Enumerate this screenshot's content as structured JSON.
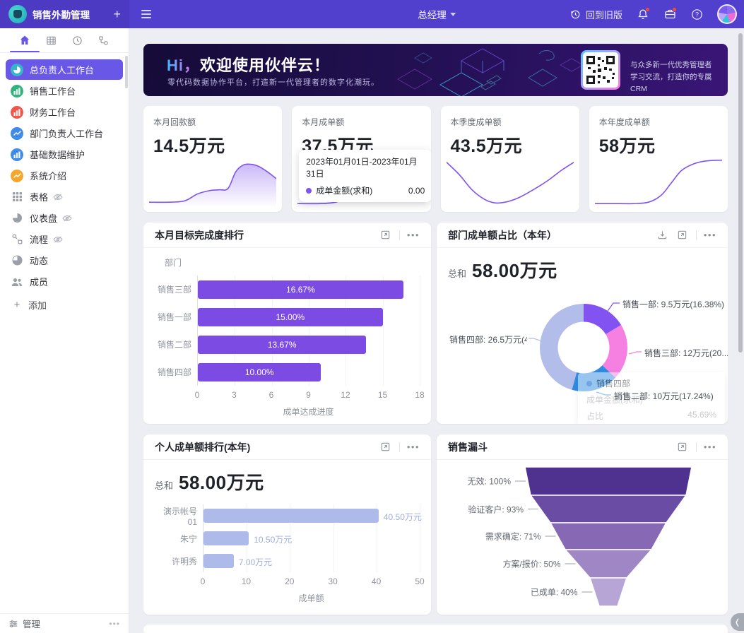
{
  "topbar": {
    "app_title": "销售外勤管理",
    "plus": "+",
    "role": "总经理",
    "back_label": "回到旧版"
  },
  "sidebar": {
    "items": [
      {
        "label": "总负责人工作台",
        "icon": "pie-chart",
        "color": "#35b5c9",
        "selected": true
      },
      {
        "label": "销售工作台",
        "icon": "bar-chart",
        "color": "#34b37e"
      },
      {
        "label": "财务工作台",
        "icon": "bar-chart",
        "color": "#f0564a"
      },
      {
        "label": "部门负责人工作台",
        "icon": "line-chart",
        "color": "#3e8bea"
      },
      {
        "label": "基础数据维护",
        "icon": "bar-chart",
        "color": "#3e8bea"
      },
      {
        "label": "系统介绍",
        "icon": "line-chart",
        "color": "#f5a62c"
      },
      {
        "label": "表格",
        "icon": "grid",
        "gray": true,
        "eye_off": true
      },
      {
        "label": "仪表盘",
        "icon": "gauge",
        "gray": true,
        "eye_off": true
      },
      {
        "label": "流程",
        "icon": "flow",
        "gray": true,
        "eye_off": true
      },
      {
        "label": "动态",
        "icon": "activity",
        "gray": true
      },
      {
        "label": "成员",
        "icon": "members",
        "gray": true
      }
    ],
    "add_label": "添加",
    "manage_label": "管理"
  },
  "banner": {
    "title_hi": "Hi，",
    "title_rest": "欢迎使用伙伴云！",
    "subtitle": "零代码数据协作平台，打造新一代管理者的数字化潮玩。",
    "qr_line1": "与众多新一代优秀管理者",
    "qr_line2": "学习交流，打造你的专属CRM"
  },
  "stat_cards": [
    {
      "label": "本月回款额",
      "value": "14.5万元",
      "kind": "area",
      "spark": [
        [
          0,
          36
        ],
        [
          15,
          36
        ],
        [
          28,
          35
        ],
        [
          38,
          30
        ],
        [
          48,
          27.5
        ],
        [
          55,
          27
        ],
        [
          62,
          26
        ],
        [
          68,
          14
        ],
        [
          74,
          9
        ],
        [
          80,
          8.5
        ],
        [
          86,
          10
        ],
        [
          93,
          14
        ],
        [
          100,
          19
        ]
      ]
    },
    {
      "label": "本月成单额",
      "value": "37.5万元",
      "kind": "area",
      "spark": [
        [
          0,
          37
        ],
        [
          18,
          37
        ],
        [
          30,
          36
        ],
        [
          42,
          32
        ],
        [
          52,
          29
        ],
        [
          60,
          27.5
        ],
        [
          68,
          27.5
        ],
        [
          75,
          28.5
        ],
        [
          82,
          29
        ],
        [
          88,
          27
        ],
        [
          93,
          18
        ],
        [
          100,
          3
        ]
      ],
      "tooltip": {
        "date_range": "2023年01月01日-2023年01月31日",
        "series": "成单金额(求和)",
        "value": "0.00"
      }
    },
    {
      "label": "本季度成单额",
      "value": "43.5万元",
      "kind": "line",
      "spark": [
        [
          0,
          7
        ],
        [
          10,
          16
        ],
        [
          20,
          27
        ],
        [
          30,
          34
        ],
        [
          38,
          36.5
        ],
        [
          46,
          36
        ],
        [
          56,
          33
        ],
        [
          68,
          27
        ],
        [
          80,
          20
        ],
        [
          90,
          13
        ],
        [
          100,
          7
        ]
      ]
    },
    {
      "label": "本年度成单额",
      "value": "58万元",
      "kind": "line",
      "spark": [
        [
          0,
          37
        ],
        [
          15,
          37
        ],
        [
          30,
          37
        ],
        [
          42,
          36
        ],
        [
          52,
          31
        ],
        [
          60,
          22
        ],
        [
          68,
          13
        ],
        [
          78,
          8
        ],
        [
          88,
          6
        ],
        [
          100,
          5.5
        ]
      ]
    }
  ],
  "chart_data": [
    {
      "type": "bar",
      "title": "本月目标完成度排行",
      "y_axis_title": "部门",
      "categories": [
        "销售三部",
        "销售一部",
        "销售二部",
        "销售四部"
      ],
      "values": [
        16.67,
        15.0,
        13.67,
        10.0
      ],
      "bar_labels": [
        "16.67%",
        "15.00%",
        "13.67%",
        "10.00%"
      ],
      "xlabel": "成单达成进度",
      "xlim": [
        0,
        18
      ],
      "xticks": [
        0,
        3,
        6,
        9,
        12,
        15,
        18
      ],
      "bar_color": "#7c4be3",
      "label_position": "inside"
    },
    {
      "type": "donut",
      "title": "部门成单额占比（本年）",
      "total_label": "总和",
      "total_value": "58.00万元",
      "total": 58.0,
      "segments": [
        {
          "name": "销售一部",
          "value": 9.5,
          "label": "销售一部: 9.5万元(16.38%)",
          "color": "#8253f0"
        },
        {
          "name": "销售三部",
          "value": 12,
          "label": "销售三部: 12万元(20....",
          "color": "#f580e2"
        },
        {
          "name": "销售二部",
          "value": 10,
          "label": "销售二部: 10万元(17.24%)",
          "color": "#2f8ce2"
        },
        {
          "name": "销售四部",
          "value": 26.5,
          "label": "销售四部: 26.5万元(4...",
          "color": "#b3bde9"
        }
      ],
      "tooltip": {
        "title": "销售四部",
        "row1_label": "成单金额(求和)",
        "row2_label": "占比",
        "row2_value": "45.69%"
      }
    },
    {
      "type": "bar",
      "title": "个人成单额排行(本年)",
      "total_label": "总和",
      "total_value": "58.00万元",
      "categories": [
        "演示帐号01",
        "朱宁",
        "许明秀"
      ],
      "values": [
        40.5,
        10.5,
        7.0
      ],
      "bar_labels": [
        "40.50万元",
        "10.50万元",
        "7.00万元"
      ],
      "xlabel": "成单额",
      "xlim": [
        0,
        50
      ],
      "xticks": [
        0,
        10,
        20,
        30,
        40,
        50
      ],
      "bar_color": "#aebbea",
      "label_position": "outside"
    },
    {
      "type": "funnel",
      "title": "销售漏斗",
      "stages": [
        {
          "label": "无效",
          "pct": "100%",
          "color": "#4f3190"
        },
        {
          "label": "验证客户",
          "pct": "93%",
          "color": "#6a4ca4"
        },
        {
          "label": "需求确定",
          "pct": "71%",
          "color": "#8668b4"
        },
        {
          "label": "方案/报价",
          "pct": "50%",
          "color": "#9f86c4"
        },
        {
          "label": "已成单",
          "pct": "40%",
          "color": "#b7a6d5"
        }
      ]
    }
  ]
}
